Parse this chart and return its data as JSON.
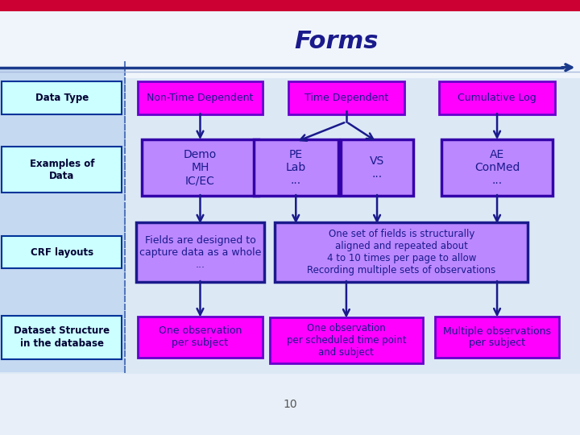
{
  "title": "Forms",
  "title_fontsize": 22,
  "title_color": "#1a1a8c",
  "background_color": "#dce9f5",
  "left_panel_color": "#c5d9f1",
  "left_panel_border": "#5577bb",
  "left_labels": [
    "Data Type",
    "Examples of\nData",
    "CRF layouts",
    "Dataset Structure\nin the database"
  ],
  "left_label_fc": "#ccffff",
  "left_label_ec": "#003399",
  "page_number": "10",
  "arrow_color": "#1a1a8c",
  "bottom_line_color": "#1a3a8c",
  "top_bar_color": "#cc0033",
  "r1_fc": "#ff00ff",
  "r1_ec": "#6600cc",
  "r1_tc": "#1a1a8c",
  "r2_fc": "#bb88ff",
  "r2_ec": "#3300aa",
  "r2_tc": "#1a1a8c",
  "r3_fc": "#bb88ff",
  "r3_ec": "#1a1a8c",
  "r3_tc": "#1a1a8c",
  "r4_fc": "#ff00ff",
  "r4_ec": "#6600cc",
  "r4_tc": "#1a1a8c"
}
